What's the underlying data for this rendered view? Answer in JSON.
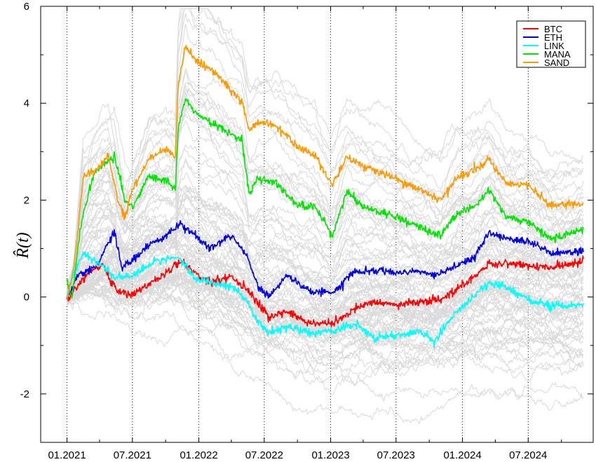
{
  "chart_data": {
    "type": "line",
    "ylabel": "R̂(t)",
    "ylim": [
      -3,
      6
    ],
    "y_ticks": [
      -2,
      0,
      2,
      4,
      6
    ],
    "x_ticks": [
      "01.2021",
      "07.2021",
      "01.2022",
      "07.2022",
      "01.2023",
      "07.2023",
      "01.2024",
      "07.2024"
    ],
    "x_tick_dates": [
      "2021-01-01",
      "2021-07-01",
      "2022-01-01",
      "2022-07-01",
      "2023-01-01",
      "2023-07-01",
      "2024-01-01",
      "2024-07-01"
    ],
    "x_range": [
      "2020-10-20",
      "2024-12-28"
    ],
    "vertical_grid": "dotted at x ticks",
    "legend_position": "top-right",
    "background_series_color": "#d9d9d9",
    "series": [
      {
        "name": "BTC",
        "color": "#ff0000",
        "points": [
          [
            "2020-12-31",
            -0.1
          ],
          [
            "2021-02-01",
            0.25
          ],
          [
            "2021-03-01",
            0.5
          ],
          [
            "2021-04-10",
            0.65
          ],
          [
            "2021-05-20",
            0.1
          ],
          [
            "2021-07-01",
            0.05
          ],
          [
            "2021-09-01",
            0.35
          ],
          [
            "2021-10-20",
            0.6
          ],
          [
            "2021-11-15",
            0.75
          ],
          [
            "2021-12-20",
            0.5
          ],
          [
            "2022-02-01",
            0.3
          ],
          [
            "2022-04-01",
            0.4
          ],
          [
            "2022-05-15",
            0.15
          ],
          [
            "2022-06-15",
            -0.15
          ],
          [
            "2022-07-15",
            -0.4
          ],
          [
            "2022-09-01",
            -0.3
          ],
          [
            "2022-11-10",
            -0.55
          ],
          [
            "2023-01-10",
            -0.55
          ],
          [
            "2023-03-20",
            -0.2
          ],
          [
            "2023-05-01",
            -0.1
          ],
          [
            "2023-07-01",
            -0.15
          ],
          [
            "2023-09-01",
            -0.1
          ],
          [
            "2023-11-01",
            -0.05
          ],
          [
            "2023-12-15",
            0.15
          ],
          [
            "2024-02-01",
            0.4
          ],
          [
            "2024-03-15",
            0.7
          ],
          [
            "2024-05-01",
            0.7
          ],
          [
            "2024-07-01",
            0.65
          ],
          [
            "2024-09-01",
            0.6
          ],
          [
            "2024-12-01",
            0.75
          ]
        ]
      },
      {
        "name": "ETH",
        "color": "#0000e6",
        "points": [
          [
            "2020-12-31",
            -0.05
          ],
          [
            "2021-02-01",
            0.45
          ],
          [
            "2021-03-20",
            0.6
          ],
          [
            "2021-05-12",
            1.35
          ],
          [
            "2021-06-01",
            0.6
          ],
          [
            "2021-07-01",
            0.75
          ],
          [
            "2021-08-20",
            1.1
          ],
          [
            "2021-09-20",
            1.2
          ],
          [
            "2021-11-10",
            1.5
          ],
          [
            "2021-12-20",
            1.3
          ],
          [
            "2022-02-01",
            1.0
          ],
          [
            "2022-04-01",
            1.25
          ],
          [
            "2022-05-15",
            0.85
          ],
          [
            "2022-06-15",
            0.2
          ],
          [
            "2022-07-15",
            0.0
          ],
          [
            "2022-09-01",
            0.45
          ],
          [
            "2022-11-10",
            0.1
          ],
          [
            "2023-01-10",
            0.1
          ],
          [
            "2023-03-01",
            0.5
          ],
          [
            "2023-05-01",
            0.55
          ],
          [
            "2023-07-01",
            0.5
          ],
          [
            "2023-09-01",
            0.55
          ],
          [
            "2023-10-15",
            0.45
          ],
          [
            "2023-12-15",
            0.65
          ],
          [
            "2024-02-01",
            0.8
          ],
          [
            "2024-03-15",
            1.35
          ],
          [
            "2024-05-01",
            1.2
          ],
          [
            "2024-07-01",
            1.15
          ],
          [
            "2024-09-01",
            0.9
          ],
          [
            "2024-12-01",
            0.95
          ]
        ]
      },
      {
        "name": "LINK",
        "color": "#00ffff",
        "points": [
          [
            "2020-12-31",
            0.0
          ],
          [
            "2021-01-20",
            0.5
          ],
          [
            "2021-02-15",
            0.9
          ],
          [
            "2021-04-01",
            0.7
          ],
          [
            "2021-05-15",
            0.4
          ],
          [
            "2021-07-01",
            0.45
          ],
          [
            "2021-09-01",
            0.75
          ],
          [
            "2021-11-01",
            0.85
          ],
          [
            "2021-12-20",
            0.4
          ],
          [
            "2022-02-01",
            0.3
          ],
          [
            "2022-04-01",
            0.2
          ],
          [
            "2022-05-15",
            -0.1
          ],
          [
            "2022-06-10",
            -0.5
          ],
          [
            "2022-07-15",
            -0.75
          ],
          [
            "2022-09-01",
            -0.6
          ],
          [
            "2022-11-10",
            -0.75
          ],
          [
            "2023-01-10",
            -0.7
          ],
          [
            "2023-03-15",
            -0.55
          ],
          [
            "2023-05-01",
            -0.85
          ],
          [
            "2023-07-01",
            -0.8
          ],
          [
            "2023-09-01",
            -0.7
          ],
          [
            "2023-10-15",
            -0.9
          ],
          [
            "2023-12-15",
            -0.3
          ],
          [
            "2024-02-01",
            0.0
          ],
          [
            "2024-03-15",
            0.3
          ],
          [
            "2024-05-01",
            0.2
          ],
          [
            "2024-07-01",
            -0.05
          ],
          [
            "2024-09-01",
            -0.2
          ],
          [
            "2024-12-01",
            -0.15
          ]
        ]
      },
      {
        "name": "MANA",
        "color": "#00e600",
        "points": [
          [
            "2020-12-31",
            0.3
          ],
          [
            "2021-01-15",
            0.0
          ],
          [
            "2021-02-10",
            1.6
          ],
          [
            "2021-03-15",
            2.5
          ],
          [
            "2021-04-10",
            2.75
          ],
          [
            "2021-05-12",
            2.9
          ],
          [
            "2021-06-10",
            2.0
          ],
          [
            "2021-07-01",
            1.85
          ],
          [
            "2021-08-15",
            2.5
          ],
          [
            "2021-10-01",
            2.4
          ],
          [
            "2021-10-28",
            2.2
          ],
          [
            "2021-11-05",
            3.5
          ],
          [
            "2021-11-25",
            4.1
          ],
          [
            "2021-12-20",
            3.8
          ],
          [
            "2022-02-01",
            3.6
          ],
          [
            "2022-03-15",
            3.45
          ],
          [
            "2022-05-01",
            3.2
          ],
          [
            "2022-05-20",
            2.1
          ],
          [
            "2022-06-15",
            2.45
          ],
          [
            "2022-08-01",
            2.35
          ],
          [
            "2022-10-01",
            1.9
          ],
          [
            "2022-11-20",
            1.85
          ],
          [
            "2023-01-05",
            1.25
          ],
          [
            "2023-02-15",
            2.2
          ],
          [
            "2023-04-01",
            1.85
          ],
          [
            "2023-06-15",
            1.7
          ],
          [
            "2023-08-01",
            1.55
          ],
          [
            "2023-09-15",
            1.4
          ],
          [
            "2023-11-01",
            1.25
          ],
          [
            "2023-12-15",
            1.7
          ],
          [
            "2024-02-01",
            1.85
          ],
          [
            "2024-03-15",
            2.2
          ],
          [
            "2024-05-01",
            1.65
          ],
          [
            "2024-07-01",
            1.55
          ],
          [
            "2024-09-01",
            1.2
          ],
          [
            "2024-12-01",
            1.4
          ]
        ]
      },
      {
        "name": "SAND",
        "color": "#ff9900",
        "points": [
          [
            "2020-12-31",
            -0.1
          ],
          [
            "2021-01-20",
            0.6
          ],
          [
            "2021-02-15",
            2.5
          ],
          [
            "2021-03-20",
            2.6
          ],
          [
            "2021-04-25",
            2.9
          ],
          [
            "2021-05-20",
            2.05
          ],
          [
            "2021-06-10",
            1.65
          ],
          [
            "2021-07-01",
            2.2
          ],
          [
            "2021-08-15",
            2.85
          ],
          [
            "2021-10-01",
            3.05
          ],
          [
            "2021-10-28",
            2.9
          ],
          [
            "2021-11-05",
            4.4
          ],
          [
            "2021-11-25",
            5.2
          ],
          [
            "2021-12-20",
            4.9
          ],
          [
            "2022-02-01",
            4.7
          ],
          [
            "2022-03-15",
            4.4
          ],
          [
            "2022-05-01",
            4.0
          ],
          [
            "2022-05-20",
            3.45
          ],
          [
            "2022-06-15",
            3.6
          ],
          [
            "2022-08-01",
            3.55
          ],
          [
            "2022-10-01",
            3.1
          ],
          [
            "2022-11-20",
            2.9
          ],
          [
            "2023-01-05",
            2.3
          ],
          [
            "2023-02-15",
            2.9
          ],
          [
            "2023-04-01",
            2.7
          ],
          [
            "2023-06-15",
            2.5
          ],
          [
            "2023-08-01",
            2.3
          ],
          [
            "2023-09-15",
            2.2
          ],
          [
            "2023-11-01",
            2.0
          ],
          [
            "2023-12-15",
            2.45
          ],
          [
            "2024-02-01",
            2.6
          ],
          [
            "2024-03-15",
            2.85
          ],
          [
            "2024-05-01",
            2.35
          ],
          [
            "2024-07-01",
            2.3
          ],
          [
            "2024-09-01",
            1.9
          ],
          [
            "2024-12-01",
            1.95
          ]
        ]
      }
    ]
  }
}
